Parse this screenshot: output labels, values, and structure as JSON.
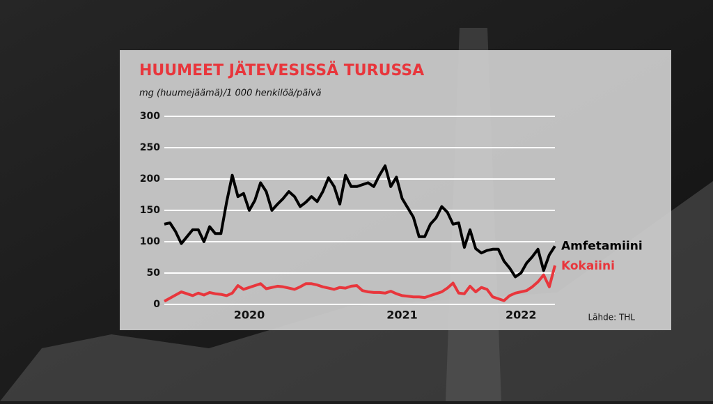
{
  "chart_data": {
    "type": "line",
    "title": "HUUMEET JÄTEVESISSÄ TURUSSA",
    "subtitle": "mg (huumejäämä)/1 000 henkilöä/päivä",
    "source": "Lähde: THL",
    "categories": [
      null,
      null,
      null,
      null,
      null,
      null,
      null,
      null,
      null,
      null,
      null,
      null,
      null,
      null,
      null,
      "2020",
      null,
      null,
      null,
      null,
      null,
      null,
      null,
      null,
      null,
      null,
      null,
      null,
      null,
      null,
      null,
      null,
      null,
      null,
      null,
      null,
      null,
      null,
      null,
      null,
      null,
      null,
      "2021",
      null,
      null,
      null,
      null,
      null,
      null,
      null,
      null,
      null,
      null,
      null,
      null,
      null,
      null,
      null,
      null,
      null,
      null,
      null,
      null,
      "2022",
      null,
      null,
      null,
      null,
      null,
      null
    ],
    "series": [
      {
        "name": "Amfetamiini",
        "color": "#000000",
        "values": [
          128,
          130,
          116,
          97,
          108,
          119,
          119,
          100,
          124,
          113,
          113,
          163,
          206,
          172,
          177,
          150,
          166,
          194,
          180,
          150,
          160,
          169,
          180,
          172,
          156,
          163,
          172,
          164,
          180,
          202,
          188,
          160,
          206,
          188,
          188,
          191,
          194,
          188,
          206,
          221,
          188,
          203,
          169,
          154,
          139,
          108,
          108,
          128,
          138,
          156,
          147,
          128,
          130,
          91,
          119,
          89,
          82,
          86,
          88,
          88,
          69,
          58,
          44,
          50,
          66,
          76,
          88,
          54,
          79,
          93
        ]
      },
      {
        "name": "Kokaiini",
        "color": "#e8363c",
        "values": [
          5,
          10,
          15,
          20,
          17,
          14,
          18,
          15,
          19,
          17,
          16,
          14,
          18,
          30,
          24,
          27,
          30,
          33,
          25,
          27,
          29,
          28,
          26,
          24,
          28,
          33,
          33,
          31,
          28,
          26,
          24,
          27,
          26,
          29,
          30,
          22,
          20,
          19,
          19,
          18,
          21,
          17,
          14,
          13,
          12,
          12,
          11,
          14,
          17,
          20,
          26,
          34,
          18,
          17,
          29,
          20,
          27,
          24,
          12,
          9,
          6,
          14,
          18,
          20,
          22,
          28,
          36,
          47,
          28,
          62
        ]
      }
    ],
    "ylim": [
      0,
      300
    ],
    "yticks": [
      0,
      50,
      100,
      150,
      200,
      250,
      300
    ],
    "grid": true
  }
}
